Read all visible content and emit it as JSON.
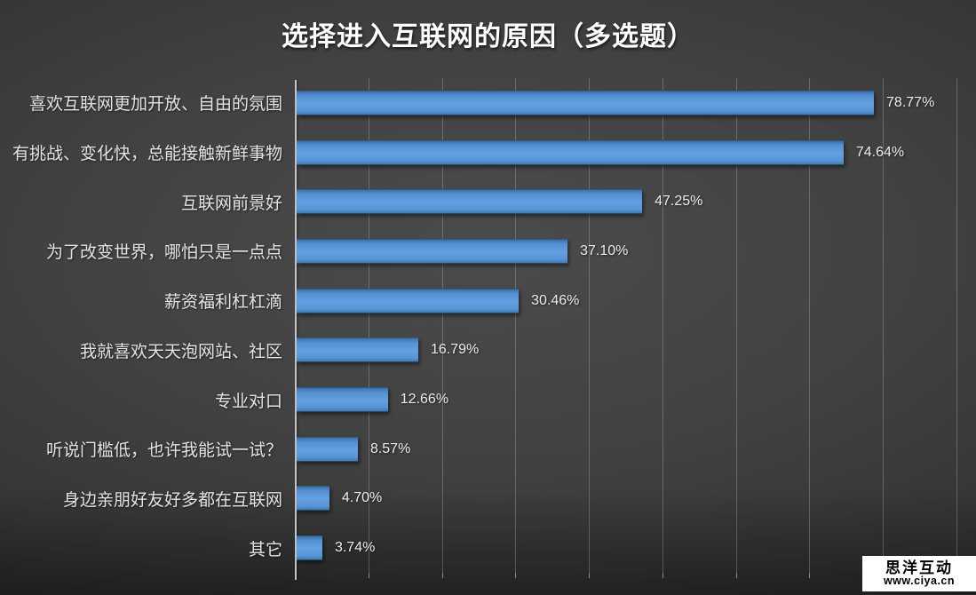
{
  "page": {
    "title": "选择进入互联网的原因（多选题）"
  },
  "watermark": {
    "brand": "思洋互动",
    "url": "www.ciya.cn"
  },
  "colors": {
    "bar": "#5A96D2",
    "bar_shade_dark": "#3E70A8",
    "grid": "rgba(255,255,255,0.22)",
    "axis_line": "#C6C6C6",
    "label_text": "#E3E3E3",
    "value_text": "#ECECEC",
    "title_text": "#FFFFFF",
    "background_center": "#4B4B4B",
    "background_edge": "#232323",
    "watermark_bg": "#FFFFFF",
    "watermark_text": "#000000"
  },
  "chart_data": {
    "type": "bar",
    "orientation": "horizontal",
    "title": "选择进入互联网的原因（多选题）",
    "categories": [
      "喜欢互联网更加开放、自由的氛围",
      "有挑战、变化快，总能接触新鲜事物",
      "互联网前景好",
      "为了改变世界，哪怕只是一点点",
      "薪资福利杠杠滴",
      "我就喜欢天天泡网站、社区",
      "专业对口",
      "听说门槛低，也许我能试一试？",
      "身边亲朋好友好多都在互联网",
      "其它"
    ],
    "values": [
      78.77,
      74.64,
      47.25,
      37.1,
      30.46,
      16.79,
      12.66,
      8.57,
      4.7,
      3.74
    ],
    "value_labels": [
      "78.77%",
      "74.64%",
      "47.25%",
      "37.10%",
      "30.46%",
      "16.79%",
      "12.66%",
      "8.57%",
      "4.70%",
      "3.74%"
    ],
    "xlabel": "",
    "ylabel": "",
    "xlim": [
      0,
      90
    ],
    "gridline_step": 10,
    "grid": true,
    "legend": false,
    "value_labels_visible": true
  }
}
